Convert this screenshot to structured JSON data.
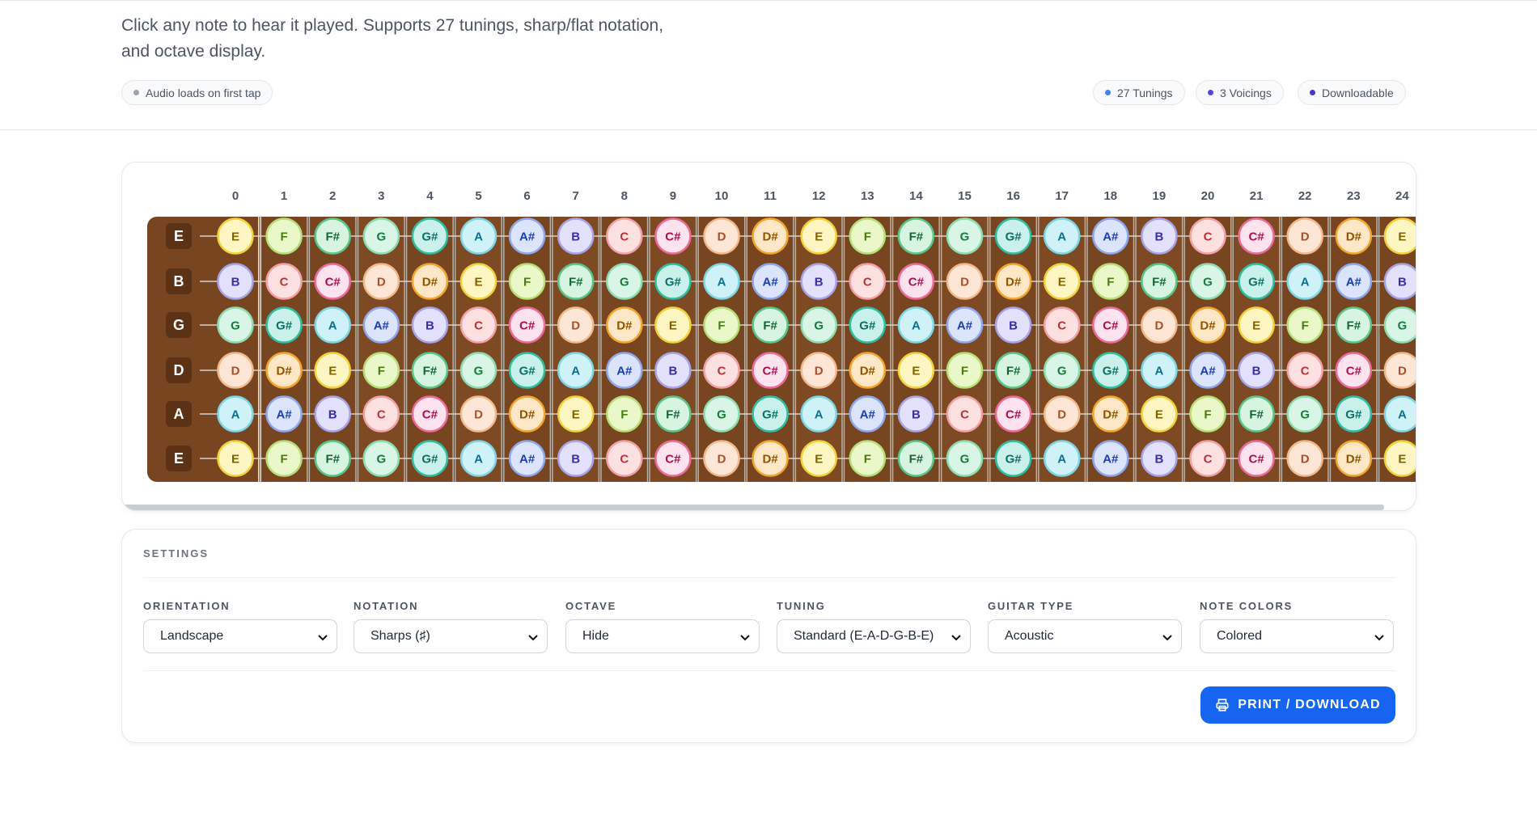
{
  "header": {
    "description": "Click any note to hear it played. Supports 27 tunings, sharp/flat notation, and octave display.",
    "audio_badge": "Audio loads on first tap",
    "badges": [
      "27 Tunings",
      "3 Voicings",
      "Downloadable"
    ]
  },
  "fretboard": {
    "fret_numbers": [
      0,
      1,
      2,
      3,
      4,
      5,
      6,
      7,
      8,
      9,
      10,
      11,
      12,
      13,
      14,
      15,
      16,
      17,
      18,
      19,
      20,
      21,
      22,
      23,
      24
    ],
    "strings": [
      {
        "name": "E",
        "notes": [
          "E",
          "F",
          "F#",
          "G",
          "G#",
          "A",
          "A#",
          "B",
          "C",
          "C#",
          "D",
          "D#",
          "E",
          "F",
          "F#",
          "G",
          "G#",
          "A",
          "A#",
          "B",
          "C",
          "C#",
          "D",
          "D#",
          "E"
        ]
      },
      {
        "name": "B",
        "notes": [
          "B",
          "C",
          "C#",
          "D",
          "D#",
          "E",
          "F",
          "F#",
          "G",
          "G#",
          "A",
          "A#",
          "B",
          "C",
          "C#",
          "D",
          "D#",
          "E",
          "F",
          "F#",
          "G",
          "G#",
          "A",
          "A#",
          "B"
        ]
      },
      {
        "name": "G",
        "notes": [
          "G",
          "G#",
          "A",
          "A#",
          "B",
          "C",
          "C#",
          "D",
          "D#",
          "E",
          "F",
          "F#",
          "G",
          "G#",
          "A",
          "A#",
          "B",
          "C",
          "C#",
          "D",
          "D#",
          "E",
          "F",
          "F#",
          "G"
        ]
      },
      {
        "name": "D",
        "notes": [
          "D",
          "D#",
          "E",
          "F",
          "F#",
          "G",
          "G#",
          "A",
          "A#",
          "B",
          "C",
          "C#",
          "D",
          "D#",
          "E",
          "F",
          "F#",
          "G",
          "G#",
          "A",
          "A#",
          "B",
          "C",
          "C#",
          "D"
        ]
      },
      {
        "name": "A",
        "notes": [
          "A",
          "A#",
          "B",
          "C",
          "C#",
          "D",
          "D#",
          "E",
          "F",
          "F#",
          "G",
          "G#",
          "A",
          "A#",
          "B",
          "C",
          "C#",
          "D",
          "D#",
          "E",
          "F",
          "F#",
          "G",
          "G#",
          "A"
        ]
      },
      {
        "name": "E",
        "notes": [
          "E",
          "F",
          "F#",
          "G",
          "G#",
          "A",
          "A#",
          "B",
          "C",
          "C#",
          "D",
          "D#",
          "E",
          "F",
          "F#",
          "G",
          "G#",
          "A",
          "A#",
          "B",
          "C",
          "C#",
          "D",
          "D#",
          "E"
        ]
      }
    ],
    "note_colors": {
      "C": [
        "#fde0e0",
        "#f4a0a6",
        "#b8323a"
      ],
      "C#": [
        "#fde3ee",
        "#ee6a98",
        "#a8124a"
      ],
      "D": [
        "#fde6d6",
        "#f3b98e",
        "#a9502a"
      ],
      "D#": [
        "#fde7c6",
        "#f3a52c",
        "#8f5500"
      ],
      "E": [
        "#fdf6c2",
        "#f2d23a",
        "#7e6400"
      ],
      "F": [
        "#eaf7c8",
        "#b6df78",
        "#4b7a10"
      ],
      "F#": [
        "#d6f4df",
        "#58c688",
        "#166534"
      ],
      "G": [
        "#d8f5e6",
        "#8ddcb0",
        "#187c3e"
      ],
      "G#": [
        "#c9f0ea",
        "#2fbea0",
        "#0f6e66"
      ],
      "A": [
        "#cef2f7",
        "#7ed5e5",
        "#0e7090"
      ],
      "A#": [
        "#dbe4fb",
        "#8ea7ee",
        "#1e40af"
      ],
      "B": [
        "#e2e0fa",
        "#a7a3eb",
        "#3730a3"
      ]
    }
  },
  "settings": {
    "title": "SETTINGS",
    "fields": [
      {
        "label": "ORIENTATION",
        "value": "Landscape"
      },
      {
        "label": "NOTATION",
        "value": "Sharps (♯)"
      },
      {
        "label": "OCTAVE",
        "value": "Hide"
      },
      {
        "label": "TUNING",
        "value": "Standard (E-A-D-G-B-E)"
      },
      {
        "label": "GUITAR TYPE",
        "value": "Acoustic"
      },
      {
        "label": "NOTE COLORS",
        "value": "Colored"
      }
    ],
    "button": "PRINT / DOWNLOAD"
  }
}
